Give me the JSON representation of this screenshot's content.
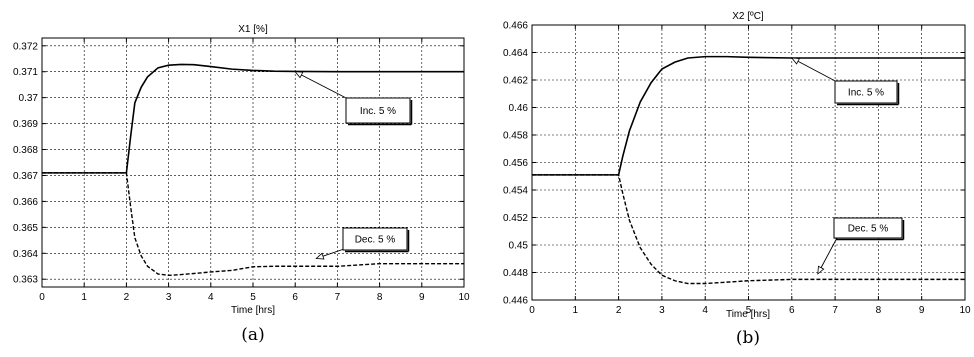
{
  "chart_data": [
    {
      "type": "line",
      "caption": "(a)",
      "title": "X1 [%]",
      "xlabel": "Time [hrs]",
      "ylabel": "",
      "xlim": [
        0,
        10
      ],
      "ylim": [
        0.3627,
        0.3723
      ],
      "xticks": [
        "0",
        "1",
        "2",
        "3",
        "4",
        "5",
        "6",
        "7",
        "8",
        "9",
        "10"
      ],
      "yticks": [
        "0.363",
        "0.364",
        "0.365",
        "0.366",
        "0.367",
        "0.368",
        "0.369",
        "0.37",
        "0.371",
        "0.372"
      ],
      "grid": true,
      "series": [
        {
          "style": "solid",
          "x": [
            0,
            2,
            2.1,
            2.2,
            2.35,
            2.5,
            2.75,
            3,
            3.3,
            3.6,
            4,
            4.5,
            5,
            5.5,
            6,
            7,
            8,
            9,
            10
          ],
          "y": [
            0.3671,
            0.3671,
            0.3685,
            0.3698,
            0.3704,
            0.3708,
            0.37115,
            0.37125,
            0.37128,
            0.37127,
            0.3712,
            0.3711,
            0.37105,
            0.37102,
            0.37101,
            0.371,
            0.371,
            0.371,
            0.371
          ]
        },
        {
          "style": "dashed",
          "x": [
            0,
            2,
            2.1,
            2.2,
            2.35,
            2.5,
            2.75,
            3,
            3.3,
            3.6,
            4,
            4.5,
            5,
            5.5,
            6,
            7,
            8,
            9,
            10
          ],
          "y": [
            0.3671,
            0.3671,
            0.3658,
            0.3646,
            0.3639,
            0.3635,
            0.3632,
            0.36315,
            0.36318,
            0.36322,
            0.36328,
            0.36334,
            0.36348,
            0.3635,
            0.3635,
            0.3635,
            0.3636,
            0.3636,
            0.3636
          ]
        }
      ],
      "annotations": [
        {
          "text": "Inc. 5 %",
          "x": 6.0,
          "y": 0.371
        },
        {
          "text": "Dec. 5 %",
          "x": 6.5,
          "y": 0.3638
        }
      ]
    },
    {
      "type": "line",
      "caption": "(b)",
      "title": "X2 [ºC]",
      "xlabel": "Time [hrs]",
      "ylabel": "",
      "xlim": [
        0,
        10
      ],
      "ylim": [
        0.446,
        0.466
      ],
      "xticks": [
        "0",
        "1",
        "2",
        "3",
        "4",
        "5",
        "6",
        "7",
        "8",
        "9",
        "10"
      ],
      "yticks": [
        "0.446",
        "0.448",
        "0.45",
        "0.452",
        "0.454",
        "0.456",
        "0.458",
        "0.46",
        "0.462",
        "0.464",
        "0.466"
      ],
      "grid": true,
      "series": [
        {
          "style": "solid",
          "x": [
            0,
            2,
            2.1,
            2.25,
            2.5,
            2.75,
            3,
            3.3,
            3.6,
            4,
            4.5,
            5,
            6,
            7,
            8,
            9,
            10
          ],
          "y": [
            0.4551,
            0.4551,
            0.4565,
            0.4583,
            0.4604,
            0.4618,
            0.4628,
            0.4633,
            0.4636,
            0.4637,
            0.4637,
            0.46365,
            0.4636,
            0.4636,
            0.4636,
            0.4636,
            0.4636
          ]
        },
        {
          "style": "dashed",
          "x": [
            0,
            2,
            2.1,
            2.25,
            2.5,
            2.75,
            3,
            3.3,
            3.6,
            4,
            4.5,
            5,
            6,
            7,
            8,
            9,
            10
          ],
          "y": [
            0.4551,
            0.4551,
            0.4537,
            0.4518,
            0.4498,
            0.4486,
            0.4478,
            0.4474,
            0.4472,
            0.4472,
            0.4473,
            0.4474,
            0.4475,
            0.4475,
            0.4475,
            0.4475,
            0.4475
          ]
        }
      ],
      "annotations": [
        {
          "text": "Inc. 5 %",
          "x": 6.0,
          "y": 0.4636
        },
        {
          "text": "Dec. 5 %",
          "x": 6.6,
          "y": 0.4479
        }
      ]
    }
  ]
}
